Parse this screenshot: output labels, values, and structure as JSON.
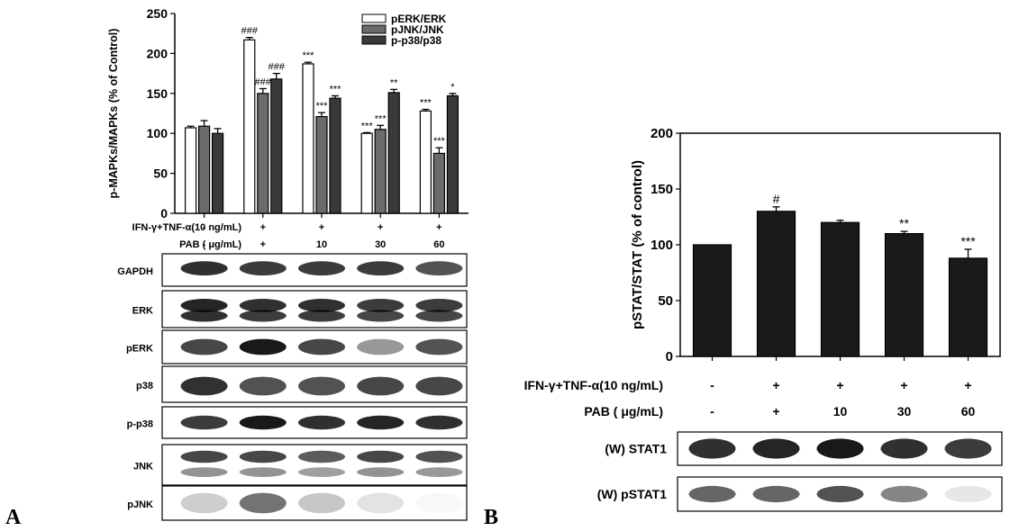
{
  "panel_labels": [
    "A",
    "B"
  ],
  "chart_data": [
    {
      "type": "bar",
      "panel": "A",
      "ylabel": "p-MAPKs/MAPKs (% of Control)",
      "ylim": [
        0,
        250
      ],
      "yticks": [
        "0",
        "50",
        "100",
        "150",
        "200",
        "250"
      ],
      "grid": false,
      "legend_placement": "top-right",
      "treatment_rows": [
        {
          "label": "IFN-γ+TNF-α(10 ng/mL)",
          "values": [
            "-",
            "+",
            "+",
            "+",
            "+"
          ]
        },
        {
          "label": "PAB  ( μg/mL)",
          "values": [
            "-",
            "+",
            "10",
            "30",
            "60"
          ]
        }
      ],
      "series": [
        {
          "name": "pERK/ERK",
          "fill": "#ffffff",
          "values": [
            107,
            217,
            187,
            100,
            128
          ],
          "errors": [
            2,
            3,
            2,
            1,
            2
          ],
          "annotations": [
            "",
            "###",
            "***",
            "***",
            "***"
          ]
        },
        {
          "name": "pJNK/JNK",
          "fill": "#6b6b6b",
          "values": [
            109,
            150,
            121,
            105,
            75
          ],
          "errors": [
            7,
            6,
            5,
            5,
            7
          ],
          "annotations": [
            "",
            "###",
            "***",
            "***",
            "***"
          ]
        },
        {
          "name": "p-p38/p38",
          "fill": "#3a3a3a",
          "values": [
            100,
            168,
            144,
            151,
            147
          ],
          "errors": [
            6,
            7,
            3,
            4,
            3
          ],
          "annotations": [
            "",
            "###",
            "***",
            "**",
            "*"
          ]
        }
      ],
      "blots": [
        "GAPDH",
        "ERK",
        "pERK",
        "p38",
        "p-p38",
        "JNK",
        "pJNK"
      ]
    },
    {
      "type": "bar",
      "panel": "B",
      "ylabel": "pSTAT/STAT  (% of control)",
      "ylim": [
        0,
        200
      ],
      "yticks": [
        "0",
        "50",
        "100",
        "150",
        "200"
      ],
      "grid": false,
      "treatment_rows": [
        {
          "label": "IFN-γ+TNF-α(10 ng/mL)",
          "values": [
            "-",
            "+",
            "+",
            "+",
            "+"
          ]
        },
        {
          "label": "PAB  ( μg/mL)",
          "values": [
            "-",
            "+",
            "10",
            "30",
            "60"
          ]
        }
      ],
      "series": [
        {
          "fill": "#1a1a1a",
          "values": [
            100,
            130,
            120,
            110,
            88
          ],
          "errors": [
            0,
            4,
            2,
            2,
            8
          ],
          "annotations": [
            "",
            "#",
            "",
            "**",
            "***"
          ]
        }
      ],
      "blots": [
        "(W) STAT1",
        "(W) pSTAT1"
      ]
    }
  ]
}
